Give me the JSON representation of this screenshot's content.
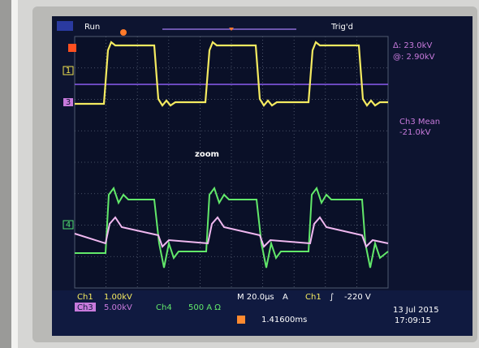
{
  "header": {
    "run": "Run",
    "trig": "Trig'd"
  },
  "cursors": {
    "delta": "Δ: 23.0kV",
    "at": "@: 2.90kV"
  },
  "measurement": {
    "name": "Ch3 Mean",
    "value": "-21.0kV"
  },
  "annotation": "zoom",
  "markers": {
    "ch1": "1",
    "ch3": "3",
    "ch4": "4"
  },
  "status": {
    "ch1_label": "Ch1",
    "ch1_scale": "1.00kV",
    "ch3_label": "Ch3",
    "ch3_scale": "5.00kV",
    "ch4_label": "Ch4",
    "ch4_scale": "500 A Ω",
    "timebase": "M 20.0µs",
    "trigger_mode": "A",
    "trigger_source": "Ch1",
    "trigger_slope": "∫",
    "trigger_level": "-220 V",
    "position": "1.41600ms",
    "date": "13 Jul  2015",
    "time": "17:09:15"
  }
}
